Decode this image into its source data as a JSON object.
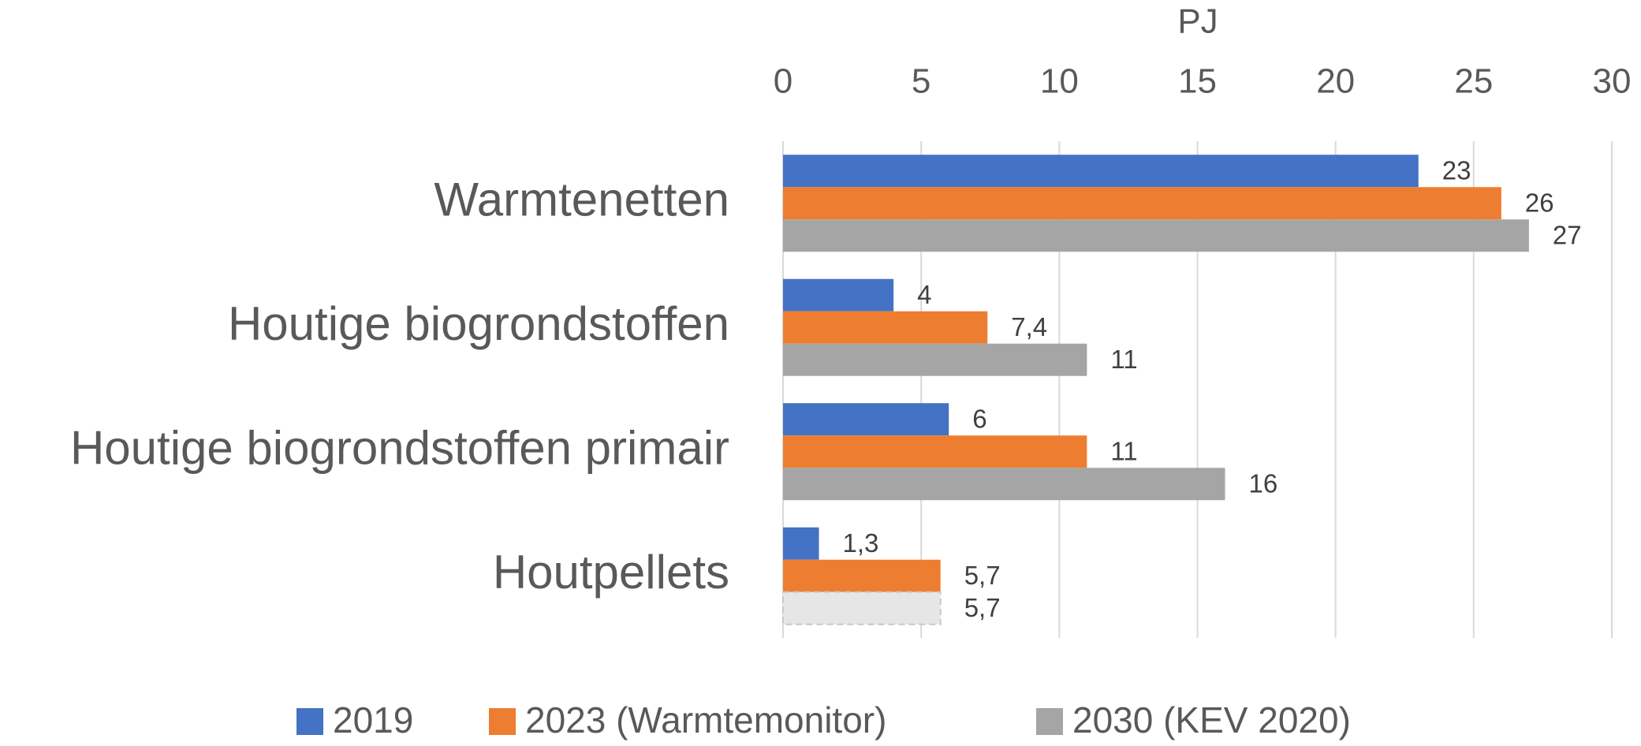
{
  "chart_data": {
    "type": "barh",
    "xlabel": "PJ",
    "categories": [
      "Warmtenetten",
      "Houtige biogrondstoffen",
      "Houtige biogrondstoffen primair",
      "Houtpellets"
    ],
    "series": [
      {
        "name": "2019",
        "color": "#4472c4",
        "values": [
          23,
          4,
          6,
          1.3
        ],
        "value_labels": [
          "23",
          "4",
          "6",
          "1,3"
        ]
      },
      {
        "name": "2023 (Warmtemonitor)",
        "color": "#ed7d31",
        "values": [
          26,
          7.4,
          11,
          5.7
        ],
        "value_labels": [
          "26",
          "7,4",
          "11",
          "5,7"
        ]
      },
      {
        "name": "2030 (KEV 2020)",
        "color": "#a5a5a5",
        "values": [
          27,
          11,
          16,
          5.7
        ],
        "value_labels": [
          "27",
          "11",
          "16",
          "5,7"
        ],
        "point_colors": [
          "#a5a5a5",
          "#a5a5a5",
          "#a5a5a5",
          "#e7e6e6"
        ],
        "dashed": [
          false,
          false,
          false,
          true
        ]
      }
    ],
    "xlim": [
      0,
      30
    ],
    "xticks": [
      0,
      5,
      10,
      15,
      20,
      25,
      30
    ],
    "grid": true,
    "legend": "bottom"
  }
}
